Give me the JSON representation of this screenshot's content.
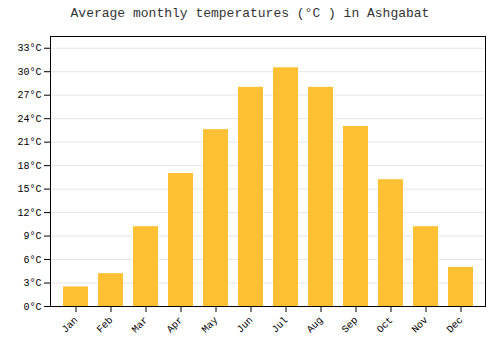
{
  "chart_data": {
    "type": "bar",
    "title": "Average monthly temperatures (°C ) in Ashgabat",
    "categories": [
      "Jan",
      "Feb",
      "Mar",
      "Apr",
      "May",
      "Jun",
      "Jul",
      "Aug",
      "Sep",
      "Oct",
      "Nov",
      "Dec"
    ],
    "values": [
      2.5,
      4.2,
      10.2,
      17.0,
      22.6,
      28.0,
      30.5,
      28.0,
      23.0,
      16.2,
      10.2,
      5.0
    ],
    "color": "#FFC133",
    "ylim": [
      0,
      34.5
    ],
    "yticks": [
      {
        "value": 0,
        "label": "0°C"
      },
      {
        "value": 3,
        "label": "3°C"
      },
      {
        "value": 6,
        "label": "6°C"
      },
      {
        "value": 9,
        "label": "9°C"
      },
      {
        "value": 12,
        "label": "12°C"
      },
      {
        "value": 15,
        "label": "15°C"
      },
      {
        "value": 18,
        "label": "18°C"
      },
      {
        "value": 21,
        "label": "21°C"
      },
      {
        "value": 24,
        "label": "24°C"
      },
      {
        "value": 27,
        "label": "27°C"
      },
      {
        "value": 30,
        "label": "30°C"
      },
      {
        "value": 33,
        "label": "33°C"
      }
    ],
    "grid": true
  }
}
